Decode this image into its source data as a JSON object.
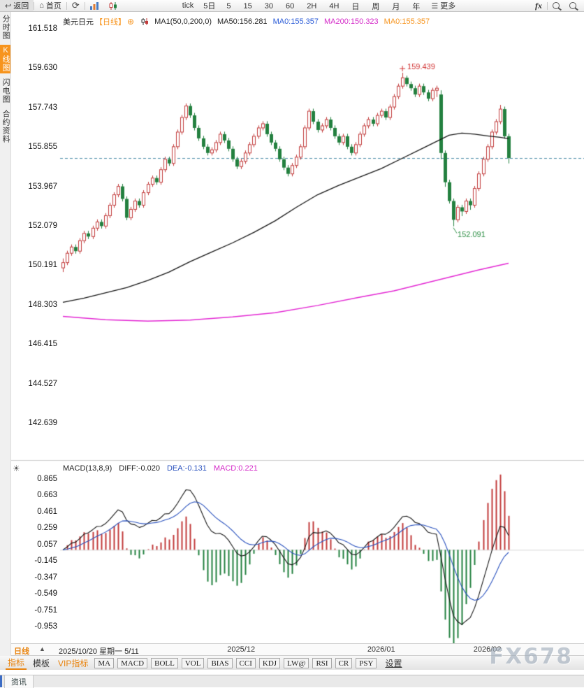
{
  "topbar": {
    "back": "返回",
    "home": "首页",
    "tick_label": "tick",
    "five_day": "5日",
    "intervals": [
      "5",
      "15",
      "30",
      "60",
      "2H",
      "4H",
      "日",
      "周",
      "月",
      "年"
    ],
    "more": "更多",
    "fx_label": "fx"
  },
  "sidebar": {
    "items": [
      {
        "label": "分时图",
        "active": false
      },
      {
        "label": "K线图",
        "active": true
      },
      {
        "label": "闪电图",
        "active": false
      },
      {
        "label": "合约资料",
        "active": false
      }
    ]
  },
  "legend": {
    "symbol": "美元日元",
    "period": "【日线】",
    "ma_group": "MA1(50,0,200,0)",
    "ma50": "MA50:156.281",
    "ma0_a": "MA0:155.357",
    "ma200": "MA200:150.323",
    "ma0_b": "MA0:155.357"
  },
  "macd_data": {
    "params_label": "MACD(13,8,9)",
    "diff_label": "DIFF:-0.020",
    "dea_label": "DEA:-0.131",
    "macd_label": "MACD:0.221",
    "diff_last": -0.02,
    "dea_last": -0.131,
    "macd_last": 0.221,
    "y_ticks": [
      "0.865",
      "0.663",
      "0.461",
      "0.259",
      "0.057",
      "-0.145",
      "-0.347",
      "-0.549",
      "-0.751",
      "-0.953"
    ]
  },
  "chart_data": {
    "type": "candlestick",
    "symbol": "美元日元",
    "period": "日线",
    "current_price": 155.357,
    "y_axis": {
      "ticks": [
        "161.518",
        "159.630",
        "157.743",
        "155.855",
        "153.967",
        "152.079",
        "150.191",
        "148.303",
        "146.415",
        "144.527",
        "142.639"
      ]
    },
    "x_axis_labels": [
      {
        "label": "2025/12",
        "bar": 42
      },
      {
        "label": "2026/01",
        "bar": 75
      },
      {
        "label": "2026/02",
        "bar": 100
      }
    ],
    "annotations": {
      "high": {
        "label": "159.439",
        "bar": 80,
        "price": 159.439
      },
      "low": {
        "label": "152.091",
        "bar": 92,
        "price": 152.091
      }
    },
    "ma50_points": [
      [
        0,
        148.45
      ],
      [
        5,
        148.65
      ],
      [
        10,
        148.9
      ],
      [
        15,
        149.15
      ],
      [
        20,
        149.5
      ],
      [
        25,
        149.9
      ],
      [
        30,
        150.4
      ],
      [
        35,
        150.85
      ],
      [
        40,
        151.3
      ],
      [
        45,
        151.8
      ],
      [
        50,
        152.35
      ],
      [
        55,
        153.0
      ],
      [
        60,
        153.6
      ],
      [
        65,
        154.05
      ],
      [
        70,
        154.45
      ],
      [
        75,
        154.85
      ],
      [
        80,
        155.35
      ],
      [
        85,
        155.85
      ],
      [
        88,
        156.15
      ],
      [
        91,
        156.45
      ],
      [
        94,
        156.55
      ],
      [
        97,
        156.5
      ],
      [
        100,
        156.42
      ],
      [
        103,
        156.35
      ],
      [
        105,
        156.281
      ]
    ],
    "ma200_points": [
      [
        0,
        147.78
      ],
      [
        10,
        147.62
      ],
      [
        20,
        147.55
      ],
      [
        30,
        147.6
      ],
      [
        40,
        147.75
      ],
      [
        50,
        147.95
      ],
      [
        60,
        148.3
      ],
      [
        70,
        148.7
      ],
      [
        78,
        149.0
      ],
      [
        85,
        149.35
      ],
      [
        92,
        149.7
      ],
      [
        98,
        150.0
      ],
      [
        105,
        150.323
      ]
    ],
    "candles": [
      [
        150.1,
        150.55,
        149.9,
        150.35
      ],
      [
        150.35,
        150.92,
        150.23,
        150.8
      ],
      [
        150.8,
        151.22,
        150.68,
        151.1
      ],
      [
        151.1,
        151.22,
        150.78,
        150.9
      ],
      [
        150.9,
        151.52,
        150.78,
        151.4
      ],
      [
        151.4,
        151.87,
        151.28,
        151.75
      ],
      [
        151.75,
        151.87,
        151.48,
        151.6
      ],
      [
        151.6,
        152.12,
        151.48,
        152.0
      ],
      [
        152.0,
        152.42,
        151.88,
        152.3
      ],
      [
        152.3,
        152.42,
        151.98,
        152.1
      ],
      [
        152.1,
        152.72,
        151.98,
        152.6
      ],
      [
        152.6,
        153.22,
        152.48,
        153.1
      ],
      [
        153.1,
        153.72,
        152.98,
        153.6
      ],
      [
        153.6,
        154.12,
        153.48,
        154.0
      ],
      [
        154.0,
        154.12,
        153.28,
        153.4
      ],
      [
        153.4,
        153.52,
        152.38,
        152.5
      ],
      [
        152.5,
        153.02,
        152.38,
        152.9
      ],
      [
        152.9,
        153.42,
        152.78,
        153.3
      ],
      [
        153.3,
        153.42,
        152.98,
        153.1
      ],
      [
        153.1,
        153.82,
        152.98,
        153.7
      ],
      [
        153.7,
        154.22,
        153.58,
        154.1
      ],
      [
        154.1,
        154.52,
        153.98,
        154.4
      ],
      [
        154.4,
        154.52,
        154.08,
        154.2
      ],
      [
        154.2,
        154.92,
        154.08,
        154.8
      ],
      [
        154.8,
        155.42,
        154.68,
        155.3
      ],
      [
        155.3,
        155.42,
        154.98,
        155.1
      ],
      [
        155.1,
        156.02,
        154.98,
        155.9
      ],
      [
        155.9,
        156.72,
        155.78,
        156.6
      ],
      [
        156.6,
        157.42,
        156.48,
        157.3
      ],
      [
        157.3,
        157.97,
        157.18,
        157.85
      ],
      [
        157.85,
        157.97,
        157.28,
        157.4
      ],
      [
        157.4,
        157.52,
        156.68,
        156.8
      ],
      [
        156.8,
        156.92,
        156.18,
        156.3
      ],
      [
        156.3,
        156.42,
        155.78,
        155.9
      ],
      [
        155.9,
        156.02,
        155.48,
        155.6
      ],
      [
        155.6,
        155.87,
        155.48,
        155.75
      ],
      [
        155.75,
        156.22,
        155.63,
        156.1
      ],
      [
        156.1,
        156.62,
        155.98,
        156.5
      ],
      [
        156.5,
        156.62,
        156.08,
        156.2
      ],
      [
        156.2,
        156.32,
        155.68,
        155.8
      ],
      [
        155.8,
        155.92,
        155.18,
        155.3
      ],
      [
        155.3,
        155.42,
        154.83,
        154.95
      ],
      [
        154.95,
        155.32,
        154.83,
        155.2
      ],
      [
        155.2,
        155.72,
        155.08,
        155.6
      ],
      [
        155.6,
        156.12,
        155.48,
        156.0
      ],
      [
        156.0,
        156.52,
        155.88,
        156.4
      ],
      [
        156.4,
        156.92,
        156.28,
        156.8
      ],
      [
        156.8,
        157.12,
        156.68,
        157.0
      ],
      [
        157.0,
        157.12,
        156.38,
        156.5
      ],
      [
        156.5,
        156.62,
        155.98,
        156.1
      ],
      [
        156.1,
        156.22,
        155.68,
        155.8
      ],
      [
        155.8,
        155.92,
        155.18,
        155.3
      ],
      [
        155.3,
        155.42,
        154.78,
        154.9
      ],
      [
        154.9,
        155.02,
        154.48,
        154.6
      ],
      [
        154.6,
        155.12,
        154.48,
        155.0
      ],
      [
        155.0,
        155.52,
        154.88,
        155.4
      ],
      [
        155.4,
        156.02,
        155.28,
        155.9
      ],
      [
        155.9,
        156.92,
        155.78,
        156.8
      ],
      [
        156.8,
        157.72,
        156.68,
        157.6
      ],
      [
        157.6,
        157.72,
        156.98,
        157.1
      ],
      [
        157.1,
        157.22,
        156.58,
        156.7
      ],
      [
        156.7,
        157.02,
        156.58,
        156.9
      ],
      [
        156.9,
        157.32,
        156.78,
        157.2
      ],
      [
        157.2,
        157.32,
        156.68,
        156.8
      ],
      [
        156.8,
        156.92,
        156.28,
        156.4
      ],
      [
        156.4,
        156.52,
        155.98,
        156.1
      ],
      [
        156.1,
        156.52,
        155.98,
        156.4
      ],
      [
        156.4,
        156.52,
        155.78,
        155.9
      ],
      [
        155.9,
        156.02,
        155.48,
        155.6
      ],
      [
        155.6,
        156.12,
        155.48,
        156.0
      ],
      [
        156.0,
        156.62,
        155.88,
        156.5
      ],
      [
        156.5,
        157.02,
        156.38,
        156.9
      ],
      [
        156.9,
        157.32,
        156.78,
        157.2
      ],
      [
        157.2,
        157.32,
        156.88,
        157.0
      ],
      [
        157.0,
        157.52,
        156.88,
        157.4
      ],
      [
        157.4,
        157.72,
        157.28,
        157.6
      ],
      [
        157.6,
        157.72,
        157.18,
        157.3
      ],
      [
        157.3,
        157.92,
        157.18,
        157.8
      ],
      [
        157.8,
        158.42,
        157.68,
        158.3
      ],
      [
        158.3,
        158.92,
        158.18,
        158.8
      ],
      [
        158.8,
        159.439,
        158.68,
        159.2
      ],
      [
        159.2,
        159.3,
        158.78,
        158.9
      ],
      [
        158.9,
        159.02,
        158.58,
        158.7
      ],
      [
        158.7,
        158.82,
        158.28,
        158.4
      ],
      [
        158.4,
        158.92,
        158.28,
        158.8
      ],
      [
        158.8,
        158.92,
        158.38,
        158.5
      ],
      [
        158.5,
        158.62,
        158.08,
        158.2
      ],
      [
        158.2,
        158.72,
        158.08,
        158.6
      ],
      [
        158.6,
        158.82,
        158.28,
        158.7
      ],
      [
        158.4,
        158.6,
        155.3,
        155.6
      ],
      [
        155.6,
        155.72,
        153.98,
        154.2
      ],
      [
        154.2,
        154.32,
        153.18,
        153.3
      ],
      [
        153.3,
        153.42,
        152.091,
        152.4
      ],
      [
        152.4,
        153.12,
        152.28,
        153.0
      ],
      [
        153.0,
        153.12,
        152.58,
        152.8
      ],
      [
        152.8,
        153.42,
        152.68,
        153.3
      ],
      [
        153.3,
        153.42,
        152.88,
        153.1
      ],
      [
        153.1,
        154.02,
        152.98,
        153.9
      ],
      [
        153.9,
        154.72,
        153.78,
        154.6
      ],
      [
        154.6,
        155.42,
        154.48,
        155.3
      ],
      [
        155.3,
        156.02,
        155.18,
        155.9
      ],
      [
        155.9,
        156.72,
        155.78,
        156.6
      ],
      [
        156.6,
        157.22,
        156.48,
        157.1
      ],
      [
        157.1,
        157.9,
        156.98,
        157.7
      ],
      [
        157.7,
        157.82,
        156.28,
        156.4
      ],
      [
        156.4,
        156.52,
        155.1,
        155.357
      ]
    ]
  },
  "bottom_axis": {
    "period_label": "日线",
    "period_arrow": "▲",
    "crosshair_info": "2025/10/20 星期一 5/11"
  },
  "indicator_bar": {
    "tab_indicator": "指标",
    "tab_template": "模板",
    "tab_vip": "VIP指标",
    "buttons": [
      "MA",
      "MACD",
      "BOLL",
      "VOL",
      "BIAS",
      "CCI",
      "KDJ",
      "LW@",
      "RSI",
      "CR",
      "PSY"
    ],
    "settings": "设置",
    "watermark": "FX678"
  },
  "statusbar": {
    "news_tab": "资讯"
  },
  "colors": {
    "up": "#c23b3b",
    "down": "#23803f",
    "ma50": "#151515",
    "ma200": "#e327d3",
    "dashed_price": "#4d8ca8",
    "diff_line": "#151515",
    "dea_line": "#2a52be",
    "accent_orange": "#f7941d",
    "deep_orange": "#e8820c",
    "blue": "#2a5bd7",
    "magenta": "#d428c8",
    "annotation_high": "#d03030",
    "annotation_low": "#2f8f46",
    "status_accent": "#3c6cc4"
  }
}
